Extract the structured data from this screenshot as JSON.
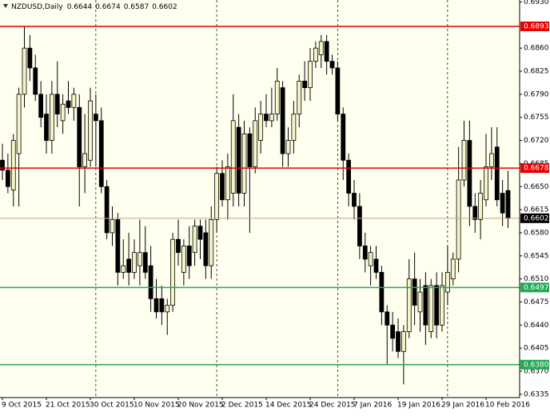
{
  "chart_data": {
    "type": "candlestick",
    "title": "NZDUSD,Daily",
    "categories": [
      "9 Oct 2015",
      null,
      null,
      null,
      null,
      null,
      null,
      null,
      "21 Oct 2015",
      null,
      null,
      null,
      null,
      null,
      null,
      null,
      "30 Oct 2015",
      null,
      null,
      null,
      null,
      null,
      null,
      null,
      "10 Nov 2015",
      null,
      null,
      null,
      null,
      null,
      null,
      null,
      "20 Nov 2015",
      null,
      null,
      null,
      null,
      null,
      null,
      null,
      "2 Dec 2015",
      null,
      null,
      null,
      null,
      null,
      null,
      null,
      "14 Dec 2015",
      null,
      null,
      null,
      null,
      null,
      null,
      null,
      "24 Dec 2015",
      null,
      null,
      null,
      null,
      null,
      null,
      null,
      "7 Jan 2016",
      null,
      null,
      null,
      null,
      null,
      null,
      null,
      "19 Jan 2016",
      null,
      null,
      null,
      null,
      null,
      null,
      null,
      "29 Jan 2016",
      null,
      null,
      null,
      null,
      null,
      null,
      null,
      "10 Feb 2016",
      null,
      null,
      null,
      null
    ],
    "open": [
      0.669,
      0.6675,
      0.6645,
      0.67,
      0.679,
      0.686,
      0.683,
      0.679,
      0.676,
      0.672,
      0.679,
      0.675,
      0.678,
      0.677,
      0.677,
      0.668,
      0.669,
      0.676,
      0.675,
      0.665,
      0.658,
      0.66,
      0.652,
      0.654,
      0.652,
      0.653,
      0.655,
      0.653,
      0.648,
      0.648,
      0.646,
      0.647,
      0.657,
      0.652,
      0.656,
      0.655,
      0.659,
      0.658,
      0.653,
      0.66,
      0.667,
      0.663,
      0.664,
      0.674,
      0.664,
      0.673,
      0.668,
      0.672,
      0.676,
      0.675,
      0.676,
      0.68,
      0.67,
      0.672,
      0.676,
      0.681,
      0.68,
      0.684,
      0.685,
      0.687,
      0.684,
      0.683,
      0.676,
      0.669,
      0.664,
      0.662,
      0.656,
      0.653,
      0.654,
      0.652,
      0.646,
      0.644,
      0.643,
      0.64,
      0.643,
      0.651,
      0.646,
      0.65,
      0.643,
      0.65,
      0.644,
      0.649,
      0.651,
      0.654,
      0.666,
      0.672,
      0.662,
      0.66,
      0.663,
      0.668,
      0.671,
      0.664,
      0.6644
    ],
    "high": [
      0.6715,
      0.67,
      0.673,
      0.68,
      0.6893,
      0.688,
      0.685,
      0.681,
      0.679,
      0.681,
      0.684,
      0.679,
      0.681,
      0.68,
      0.679,
      0.676,
      0.68,
      0.679,
      0.677,
      0.666,
      0.662,
      0.661,
      0.657,
      0.658,
      0.657,
      0.66,
      0.659,
      0.656,
      0.651,
      0.65,
      0.648,
      0.658,
      0.66,
      0.657,
      0.659,
      0.66,
      0.66,
      0.66,
      0.662,
      0.668,
      0.669,
      0.67,
      0.679,
      0.676,
      0.675,
      0.674,
      0.677,
      0.678,
      0.679,
      0.68,
      0.683,
      0.681,
      0.674,
      0.678,
      0.682,
      0.684,
      0.686,
      0.687,
      0.688,
      0.688,
      0.685,
      0.684,
      0.677,
      0.67,
      0.666,
      0.664,
      0.658,
      0.656,
      0.656,
      0.653,
      0.647,
      0.646,
      0.645,
      0.644,
      0.654,
      0.655,
      0.651,
      0.652,
      0.651,
      0.652,
      0.652,
      0.656,
      0.655,
      0.671,
      0.675,
      0.675,
      0.664,
      0.666,
      0.673,
      0.674,
      0.674,
      0.666,
      0.6674
    ],
    "low": [
      0.666,
      0.664,
      0.662,
      0.662,
      0.677,
      0.681,
      0.678,
      0.674,
      0.67,
      0.67,
      0.674,
      0.673,
      0.676,
      0.675,
      0.662,
      0.664,
      0.668,
      0.668,
      0.664,
      0.657,
      0.656,
      0.65,
      0.651,
      0.65,
      0.651,
      0.65,
      0.651,
      0.646,
      0.645,
      0.644,
      0.6425,
      0.646,
      0.653,
      0.65,
      0.651,
      0.653,
      0.654,
      0.651,
      0.651,
      0.658,
      0.662,
      0.66,
      0.662,
      0.662,
      0.662,
      0.658,
      0.667,
      0.67,
      0.674,
      0.674,
      0.675,
      0.668,
      0.668,
      0.67,
      0.674,
      0.678,
      0.678,
      0.683,
      0.683,
      0.682,
      0.682,
      0.675,
      0.666,
      0.662,
      0.66,
      0.654,
      0.652,
      0.65,
      0.651,
      0.644,
      0.638,
      0.64,
      0.639,
      0.635,
      0.642,
      0.644,
      0.643,
      0.641,
      0.642,
      0.642,
      0.643,
      0.647,
      0.65,
      0.652,
      0.665,
      0.659,
      0.658,
      0.657,
      0.662,
      0.666,
      0.662,
      0.659,
      0.6587
    ],
    "close": [
      0.6675,
      0.665,
      0.672,
      0.679,
      0.686,
      0.683,
      0.679,
      0.6755,
      0.672,
      0.679,
      0.676,
      0.6775,
      0.677,
      0.679,
      0.668,
      0.67,
      0.678,
      0.675,
      0.665,
      0.658,
      0.66,
      0.652,
      0.653,
      0.652,
      0.655,
      0.655,
      0.652,
      0.648,
      0.646,
      0.646,
      0.647,
      0.657,
      0.655,
      0.656,
      0.653,
      0.659,
      0.657,
      0.653,
      0.66,
      0.667,
      0.663,
      0.668,
      0.675,
      0.664,
      0.673,
      0.668,
      0.675,
      0.676,
      0.675,
      0.676,
      0.681,
      0.67,
      0.672,
      0.676,
      0.681,
      0.68,
      0.684,
      0.686,
      0.687,
      0.684,
      0.683,
      0.676,
      0.669,
      0.664,
      0.662,
      0.656,
      0.654,
      0.655,
      0.652,
      0.646,
      0.644,
      0.642,
      0.64,
      0.643,
      0.651,
      0.647,
      0.649,
      0.644,
      0.65,
      0.644,
      0.65,
      0.652,
      0.654,
      0.666,
      0.672,
      0.662,
      0.66,
      0.664,
      0.668,
      0.67,
      0.663,
      0.661,
      0.6602
    ],
    "bull_color": "#f5f5c8",
    "bear_color": "#000000",
    "background": "#fffff0",
    "ylim": [
      0.633,
      0.6933
    ],
    "yticks": [
      {
        "value": 0.693,
        "label": "0.6930"
      },
      {
        "value": 0.686,
        "label": "0.6860"
      },
      {
        "value": 0.6825,
        "label": "0.6825"
      },
      {
        "value": 0.679,
        "label": "0.6790"
      },
      {
        "value": 0.6755,
        "label": "0.6755"
      },
      {
        "value": 0.672,
        "label": "0.6720"
      },
      {
        "value": 0.6685,
        "label": "0.6685"
      },
      {
        "value": 0.665,
        "label": "0.6650"
      },
      {
        "value": 0.6615,
        "label": "0.6615"
      },
      {
        "value": 0.658,
        "label": "0.6580"
      },
      {
        "value": 0.6545,
        "label": "0.6545"
      },
      {
        "value": 0.651,
        "label": "0.6510"
      },
      {
        "value": 0.6475,
        "label": "0.6475"
      },
      {
        "value": 0.644,
        "label": "0.6440"
      },
      {
        "value": 0.6405,
        "label": "0.6405"
      },
      {
        "value": 0.637,
        "label": "0.6370"
      },
      {
        "value": 0.6335,
        "label": "0.6335"
      }
    ],
    "levels": [
      {
        "value": 0.6893,
        "label": "0.6893",
        "color": "#e60000"
      },
      {
        "value": 0.6678,
        "label": "0.6678",
        "color": "#e60000"
      },
      {
        "value": 0.6602,
        "label": "0.6602",
        "color": "#000000"
      },
      {
        "value": 0.6497,
        "label": "0.6497",
        "color": "#22aa55"
      },
      {
        "value": 0.638,
        "label": "0.6380",
        "color": "#22aa55"
      }
    ]
  }
}
